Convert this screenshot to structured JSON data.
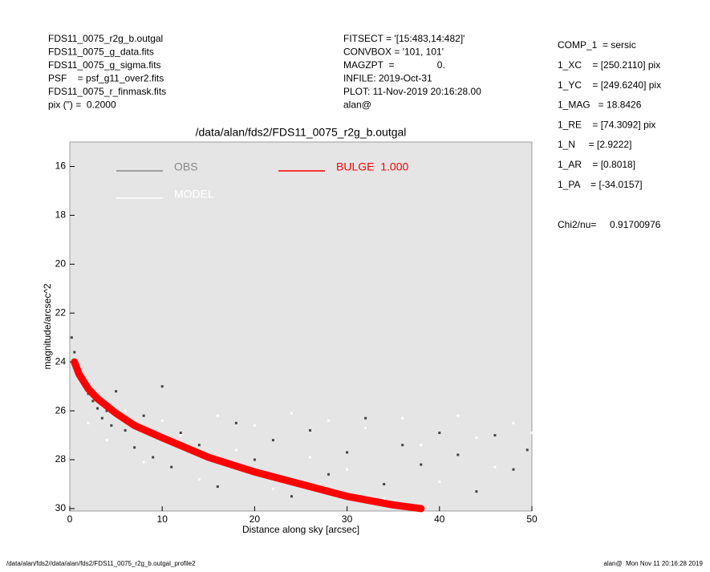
{
  "header": {
    "left": [
      "FDS11_0075_r2g_b.outgal",
      "FDS11_0075_g_data.fits",
      "FDS11_0075_g_sigma.fits",
      "PSF    = psf_g11_over2.fits",
      "FDS11_0075_r_finmask.fits",
      "pix (\") =  0.2000"
    ],
    "middle": [
      "FITSECT = '[15:483,14:482]'",
      "CONVBOX = '101, 101'",
      "MAGZPT  =                0.",
      "INFILE: 2019-Oct-31",
      "PLOT: 11-Nov-2019 20:16:28.00",
      "alan@"
    ],
    "right": [
      "COMP_1  = sersic",
      "1_XC    = [250.2110] pix",
      "1_YC    = [249.6240] pix",
      "1_MAG   = 18.8426",
      "1_RE    = [74.3092] pix",
      "1_N     = [2.9222]",
      "1_AR    = [0.8018]",
      "1_PA    = [-34.0157]"
    ],
    "chi2": "Chi2/nu=     0.91700976"
  },
  "footer": {
    "left": "/data/alan/fds2//data/alan/fds2/FDS11_0075_r2g_b.outgal_profile2",
    "right": "alan@  Mon Nov 11 20:16:28 2019"
  },
  "chart_data": {
    "type": "scatter",
    "title": "/data/alan/fds2/FDS11_0075_r2g_b.outgal",
    "x_label": "Distance along sky [arcsec]",
    "y_label": "magnitude/arcsec^2",
    "xlim": [
      0,
      50
    ],
    "ylim": [
      30.1,
      15.0
    ],
    "xticks": [
      0,
      10,
      20,
      30,
      40,
      50
    ],
    "yticks": [
      16,
      18,
      20,
      22,
      24,
      26,
      28,
      30
    ],
    "background": "#e5e5e5",
    "series": [
      {
        "name": "OBS",
        "color": "#444444",
        "legend_color": "#888888",
        "draw": "points",
        "x": [
          0.2,
          0.5,
          0.8,
          1.2,
          1.6,
          2,
          2.5,
          3,
          3.5,
          4,
          4.5,
          5,
          6,
          7,
          8,
          9,
          10,
          11,
          12,
          14,
          16,
          18,
          20,
          22,
          24,
          26,
          28,
          30,
          32,
          34,
          36,
          38,
          40,
          42,
          44,
          46,
          48,
          49.5
        ],
        "values": [
          23.0,
          23.6,
          24.1,
          24.6,
          24.9,
          25.3,
          25.6,
          25.9,
          26.3,
          26.0,
          26.6,
          25.2,
          26.8,
          27.5,
          26.2,
          27.9,
          25.0,
          28.3,
          26.9,
          27.4,
          29.1,
          26.5,
          28.0,
          27.2,
          29.5,
          26.8,
          28.6,
          27.7,
          26.3,
          29.0,
          27.4,
          28.2,
          26.9,
          27.8,
          29.3,
          27.0,
          28.4,
          27.6
        ]
      },
      {
        "name": "MODEL",
        "color": "#ffffff",
        "legend_color": "#ffffff",
        "draw": "points",
        "x": [
          2,
          4,
          6,
          8,
          10,
          12,
          14,
          16,
          18,
          20,
          22,
          24,
          26,
          28,
          30,
          32,
          34,
          36,
          38,
          40,
          42,
          44,
          46,
          48,
          50
        ],
        "values": [
          26.5,
          27.2,
          26.0,
          28.1,
          26.4,
          27.0,
          28.8,
          26.2,
          27.6,
          26.6,
          29.2,
          26.1,
          27.9,
          26.4,
          28.4,
          26.7,
          29.6,
          26.3,
          27.4,
          28.9,
          26.2,
          27.1,
          28.3,
          26.5,
          26.9
        ]
      },
      {
        "name": "BULGE  1.000",
        "color": "#ff0000",
        "legend_color": "#ff0000",
        "draw": "band",
        "x": [
          0.5,
          1,
          2,
          3,
          5,
          7,
          10,
          15,
          20,
          25,
          30,
          35,
          38
        ],
        "values": [
          24.0,
          24.5,
          25.1,
          25.5,
          26.1,
          26.6,
          27.1,
          27.9,
          28.5,
          29.0,
          29.5,
          29.85,
          30.0
        ]
      }
    ]
  }
}
